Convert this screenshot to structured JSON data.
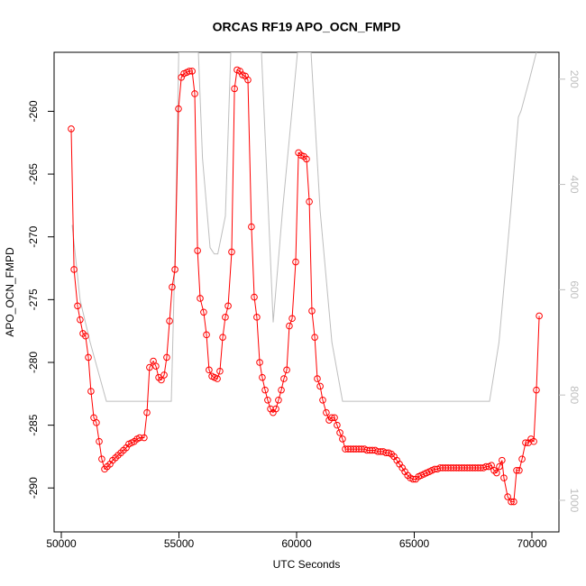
{
  "chart_data": {
    "type": "line",
    "title": "ORCAS RF19 APO_OCN_FMPD",
    "xlabel": "UTC Seconds",
    "ylabel": "APO_OCN_FMPD",
    "xlim": [
      49693,
      71149
    ],
    "xticks": [
      50000,
      55000,
      60000,
      65000,
      70000
    ],
    "ylim": [
      -293.5,
      -255.3
    ],
    "yticks": [
      -290,
      -285,
      -280,
      -275,
      -270,
      -265,
      -260
    ],
    "y2lim": [
      1060,
      149
    ],
    "y2ticks": [
      200,
      400,
      600,
      800,
      1000
    ],
    "series": [
      {
        "color": "#ff0000",
        "marker": "circle",
        "x": [
          50420,
          50540,
          50690,
          50800,
          50920,
          51030,
          51150,
          51260,
          51380,
          51490,
          51610,
          51720,
          51840,
          51950,
          52070,
          52180,
          52300,
          52410,
          52530,
          52640,
          52760,
          52870,
          52990,
          53100,
          53220,
          53330,
          53520,
          53640,
          53750,
          53910,
          54020,
          54140,
          54250,
          54370,
          54480,
          54600,
          54710,
          54830,
          54980,
          55100,
          55210,
          55330,
          55440,
          55560,
          55670,
          55790,
          55900,
          56050,
          56170,
          56280,
          56400,
          56510,
          56630,
          56740,
          56860,
          56970,
          57090,
          57240,
          57360,
          57470,
          57590,
          57700,
          57820,
          57930,
          58080,
          58200,
          58310,
          58430,
          58540,
          58660,
          58770,
          58890,
          59000,
          59120,
          59230,
          59350,
          59460,
          59580,
          59690,
          59810,
          59960,
          60080,
          60190,
          60310,
          60420,
          60540,
          60650,
          60770,
          60880,
          61000,
          61110,
          61260,
          61380,
          61490,
          61610,
          61720,
          61840,
          61950,
          62070,
          62190,
          62300,
          62420,
          62530,
          62650,
          62760,
          62880,
          62990,
          63110,
          63220,
          63340,
          63450,
          63570,
          63680,
          63800,
          63910,
          64030,
          64140,
          64260,
          64370,
          64490,
          64600,
          64720,
          64830,
          64950,
          65060,
          65180,
          65290,
          65410,
          65520,
          65640,
          65750,
          65870,
          65980,
          66100,
          66210,
          66330,
          66440,
          66560,
          66670,
          66790,
          66900,
          67020,
          67130,
          67250,
          67360,
          67480,
          67590,
          67710,
          67820,
          67940,
          68050,
          68170,
          68280,
          68390,
          68500,
          68620,
          68730,
          68810,
          68970,
          69120,
          69230,
          69350,
          69460,
          69580,
          69730,
          69850,
          69960,
          70080,
          70190,
          70310
        ],
        "values": [
          -261.4,
          -272.6,
          -275.5,
          -276.6,
          -277.7,
          -277.9,
          -279.6,
          -282.3,
          -284.4,
          -284.8,
          -286.3,
          -287.7,
          -288.5,
          -288.3,
          -288.1,
          -287.8,
          -287.6,
          -287.4,
          -287.2,
          -287.0,
          -286.8,
          -286.5,
          -286.4,
          -286.3,
          -286.1,
          -286.0,
          -286.0,
          -284.0,
          -280.4,
          -279.9,
          -280.3,
          -281.2,
          -281.4,
          -281.0,
          -279.6,
          -276.7,
          -274.0,
          -272.6,
          -259.8,
          -257.3,
          -257.0,
          -256.9,
          -256.8,
          -256.8,
          -258.6,
          -271.1,
          -274.9,
          -276.0,
          -277.8,
          -280.6,
          -281.1,
          -281.2,
          -281.3,
          -280.7,
          -278.0,
          -276.4,
          -275.5,
          -271.2,
          -258.2,
          -256.7,
          -256.8,
          -257.1,
          -257.2,
          -257.5,
          -269.2,
          -274.8,
          -276.4,
          -280.0,
          -281.2,
          -282.2,
          -283.0,
          -283.7,
          -284.0,
          -283.7,
          -283.0,
          -282.2,
          -281.3,
          -280.6,
          -277.1,
          -276.5,
          -272.0,
          -263.3,
          -263.5,
          -263.6,
          -263.8,
          -267.2,
          -275.9,
          -278.0,
          -281.3,
          -281.9,
          -283.0,
          -284.0,
          -284.6,
          -284.4,
          -284.4,
          -285.0,
          -285.6,
          -286.1,
          -286.9,
          -286.9,
          -286.9,
          -286.9,
          -286.9,
          -286.9,
          -286.9,
          -286.9,
          -287.0,
          -287.0,
          -287.0,
          -287.0,
          -287.1,
          -287.1,
          -287.1,
          -287.2,
          -287.2,
          -287.3,
          -287.5,
          -287.8,
          -288.1,
          -288.4,
          -288.7,
          -289.0,
          -289.2,
          -289.3,
          -289.3,
          -289.1,
          -289.0,
          -288.9,
          -288.8,
          -288.7,
          -288.6,
          -288.5,
          -288.5,
          -288.4,
          -288.4,
          -288.4,
          -288.4,
          -288.4,
          -288.4,
          -288.4,
          -288.4,
          -288.4,
          -288.4,
          -288.4,
          -288.4,
          -288.4,
          -288.4,
          -288.4,
          -288.4,
          -288.4,
          -288.3,
          -288.3,
          -288.2,
          -288.6,
          -288.8,
          -288.3,
          -287.8,
          -289.2,
          -290.7,
          -291.1,
          -291.1,
          -288.6,
          -288.6,
          -287.7,
          -286.4,
          -286.4,
          -286.1,
          -286.3,
          -282.2,
          -276.3
        ]
      },
      {
        "color": "#bebebe",
        "axis": "y2",
        "x": [
          50460,
          50800,
          51226,
          51916,
          54674,
          54850,
          54990,
          55824,
          56000,
          56322,
          56500,
          56650,
          56973,
          57203,
          58506,
          58800,
          59004,
          59400,
          60038,
          60613,
          61000,
          61500,
          61954,
          68199,
          68600,
          69100,
          69425,
          69540,
          69900,
          70190
        ],
        "values": [
          477,
          620,
          700,
          812,
          812,
          500,
          149,
          149,
          350,
          520,
          532,
          532,
          460,
          149,
          149,
          450,
          662,
          450,
          149,
          149,
          450,
          700,
          812,
          812,
          700,
          450,
          272,
          260,
          200,
          149
        ]
      }
    ]
  }
}
